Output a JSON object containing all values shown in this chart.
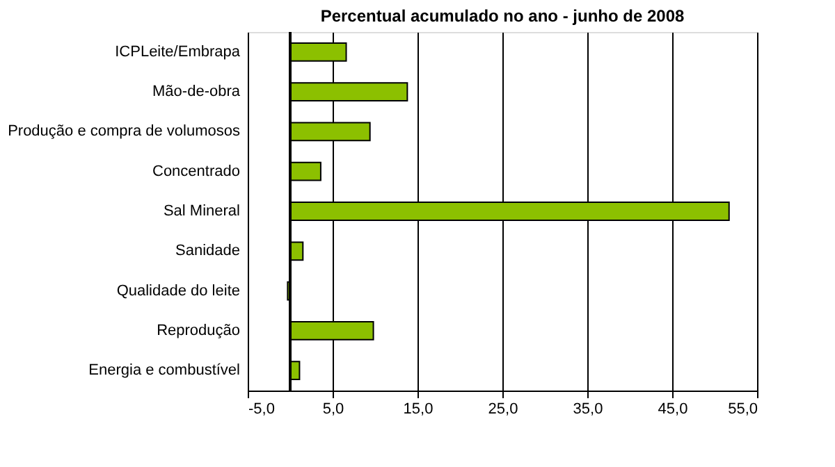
{
  "chart_data": {
    "type": "bar",
    "orientation": "horizontal",
    "title": "Percentual acumulado no ano - junho de 2008",
    "categories": [
      "ICPLeite/Embrapa",
      "Mão-de-obra",
      "Produção e compra de volumosos",
      "Concentrado",
      "Sal Mineral",
      "Sanidade",
      "Qualidade do leite",
      "Reprodução",
      "Energia e combustível"
    ],
    "values": [
      6.6,
      13.8,
      9.4,
      3.6,
      51.7,
      1.5,
      -0.3,
      9.8,
      1.1
    ],
    "color": "#8cc000",
    "xlim": [
      -5,
      55
    ],
    "xticks": [
      {
        "value": -5,
        "label": "-5,0"
      },
      {
        "value": 5,
        "label": "5,0"
      },
      {
        "value": 15,
        "label": "15,0"
      },
      {
        "value": 25,
        "label": "25,0"
      },
      {
        "value": 35,
        "label": "35,0"
      },
      {
        "value": 45,
        "label": "45,0"
      },
      {
        "value": 55,
        "label": "55,0"
      }
    ],
    "grid": "x"
  }
}
